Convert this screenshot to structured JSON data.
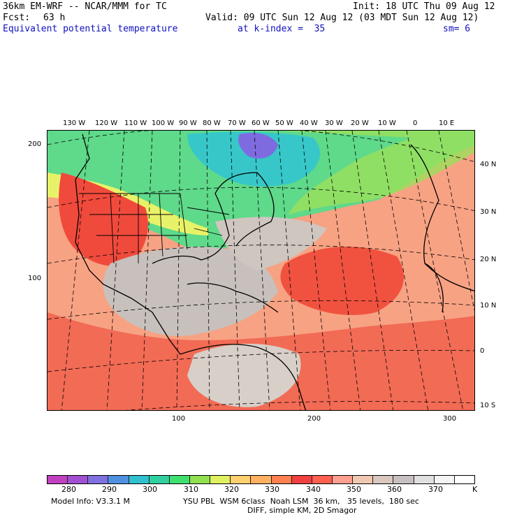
{
  "header": {
    "model": "36km EM-WRF -- NCAR/MMM for TC",
    "init": "Init: 18 UTC Thu 09 Aug 12",
    "fcst_label": "Fcst:",
    "fcst_value": "63 h",
    "valid": "Valid: 09 UTC Sun 12 Aug 12 (03 MDT Sun 12 Aug 12)",
    "field": "Equivalent potential temperature",
    "k_index": "at k-index =  35",
    "sm": "sm= 6"
  },
  "map": {
    "top_labels": [
      "130 W",
      "120 W",
      "110 W",
      "100 W",
      "90 W",
      "80 W",
      "70 W",
      "60 W",
      "50 W",
      "40 W",
      "30 W",
      "20 W",
      "10 W",
      "0",
      "10 E"
    ],
    "right_labels": [
      "40 N",
      "30 N",
      "20 N",
      "10 N",
      "0",
      "10 S"
    ],
    "left_labels": [
      "200",
      "100"
    ],
    "bottom_labels": [
      "100",
      "200",
      "300"
    ]
  },
  "colorbar": {
    "colors": [
      "#c040c0",
      "#a050d0",
      "#8070e0",
      "#5090e0",
      "#30c0d0",
      "#30d0a0",
      "#40e070",
      "#90e050",
      "#e0f060",
      "#ffd070",
      "#ffb060",
      "#ff8050",
      "#f04040",
      "#ff6050",
      "#ffa090",
      "#f0c8b0",
      "#d8c8c0",
      "#c8c0c0",
      "#e0e0e0",
      "#f4f4f4",
      "#ffffff"
    ],
    "labels": [
      "280",
      "290",
      "300",
      "310",
      "320",
      "330",
      "340",
      "350",
      "360",
      "370"
    ],
    "unit": "K"
  },
  "footer": {
    "model_info": "Model Info: V3.3.1 M",
    "physics": "YSU PBL  WSM 6class  Noah LSM  36 km,   35 levels,  180 sec",
    "diff": "DIFF, simple KM, 2D Smagor"
  }
}
